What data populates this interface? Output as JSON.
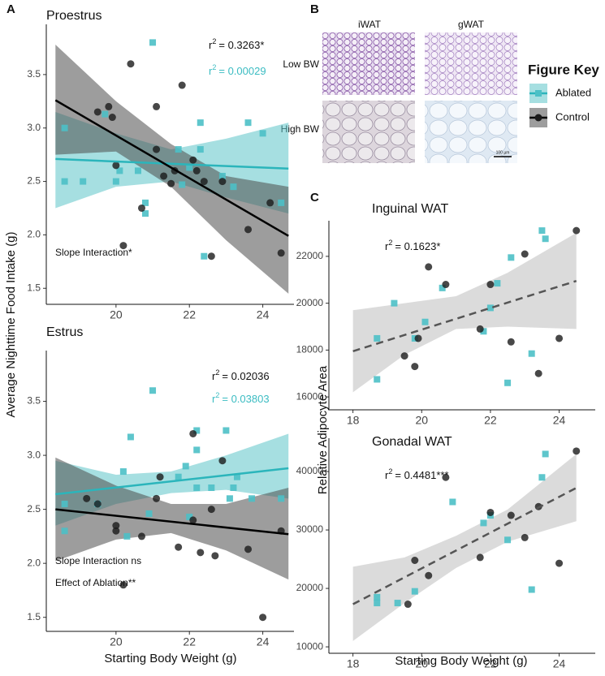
{
  "panel_labels": [
    "A",
    "B",
    "C"
  ],
  "micrographs": {
    "columns": [
      "iWAT",
      "gWAT"
    ],
    "rows": [
      "Low BW",
      "High BW"
    ],
    "scale_bar": "100 µm"
  },
  "figure_key": {
    "title": "Figure Key"
  },
  "chart_data": [
    {
      "type": "scatter",
      "title": "Proestrus",
      "ylabel": "Average Nighttime Food Intake (g)",
      "xlim": [
        18.1,
        24.85
      ],
      "ylim": [
        1.35,
        3.97
      ],
      "xticks": [
        20,
        22,
        24
      ],
      "yticks": [
        1.5,
        {
          "value": 2,
          "label": "2.0"
        },
        2.5,
        {
          "value": 3,
          "label": "3.0"
        },
        3.5
      ],
      "r2": [
        {
          "symbol": "r",
          "exponent": "2",
          "text": "= 0.3263*",
          "color": "#111111"
        },
        {
          "symbol": "r",
          "exponent": "2",
          "text": "= 0.00029",
          "color": "#3bbcc2"
        }
      ],
      "notes": [
        "Slope Interaction*"
      ],
      "series": [
        {
          "name": "Ablated",
          "color": "#4cc0c6",
          "marker": "square",
          "x": [
            18.6,
            18.6,
            19.1,
            19.7,
            20.0,
            20.1,
            20.6,
            20.8,
            20.8,
            21.0,
            21.7,
            22.3,
            22.3,
            21.8,
            22.4,
            22.9,
            23.2,
            23.6,
            24.0,
            24.5,
            22.0
          ],
          "values": [
            3.0,
            2.5,
            2.5,
            3.13,
            2.5,
            2.6,
            2.6,
            2.3,
            2.2,
            3.8,
            2.8,
            3.05,
            2.8,
            2.47,
            1.8,
            2.55,
            2.45,
            3.05,
            2.95,
            2.3,
            2.63
          ],
          "fit": {
            "color": "#2bb5bb",
            "x": [
              18.35,
              24.7
            ],
            "values": [
              2.71,
              2.62
            ]
          },
          "band": {
            "color": "#5cc4c9",
            "x": [
              18.35,
              20,
              21.5,
              23,
              24.7
            ],
            "lower": [
              2.25,
              2.45,
              2.5,
              2.35,
              2.2
            ],
            "upper": [
              3.15,
              2.95,
              2.8,
              2.9,
              3.05
            ]
          }
        },
        {
          "name": "Control",
          "color": "#1a1a1a",
          "marker": "circle",
          "x": [
            19.5,
            19.8,
            19.9,
            20.0,
            20.2,
            20.4,
            20.7,
            21.1,
            21.1,
            21.3,
            21.5,
            21.8,
            21.6,
            22.1,
            22.2,
            22.4,
            22.6,
            22.9,
            23.6,
            24.2,
            24.5
          ],
          "values": [
            3.15,
            3.2,
            3.1,
            2.65,
            1.9,
            3.6,
            2.25,
            3.2,
            2.8,
            2.55,
            2.48,
            3.4,
            2.6,
            2.7,
            2.6,
            2.5,
            1.8,
            2.5,
            2.05,
            2.3,
            1.83
          ],
          "fit": {
            "color": "#000000",
            "x": [
              18.35,
              24.7
            ],
            "values": [
              3.26,
              1.99
            ]
          },
          "band": {
            "color": "#4d4d4d",
            "x": [
              18.35,
              20,
              21.5,
              23,
              24.7
            ],
            "lower": [
              2.75,
              2.78,
              2.45,
              1.95,
              1.45
            ],
            "upper": [
              3.78,
              3.25,
              2.85,
              2.55,
              2.45
            ]
          }
        }
      ]
    },
    {
      "type": "scatter",
      "title": "Estrus",
      "xlabel": "Starting Body Weight (g)",
      "xlim": [
        18.1,
        24.85
      ],
      "ylim": [
        1.37,
        3.97
      ],
      "xticks": [
        20,
        22,
        24
      ],
      "yticks": [
        1.5,
        {
          "value": 2,
          "label": "2.0"
        },
        2.5,
        {
          "value": 3,
          "label": "3.0"
        },
        3.5
      ],
      "r2": [
        {
          "symbol": "r",
          "exponent": "2",
          "text": "= 0.02036",
          "color": "#111111"
        },
        {
          "symbol": "r",
          "exponent": "2",
          "text": "= 0.03803",
          "color": "#3bbcc2"
        }
      ],
      "notes": [
        "Slope Interaction ns",
        "Effect of Ablation**"
      ],
      "series": [
        {
          "name": "Ablated",
          "color": "#4cc0c6",
          "marker": "square",
          "x": [
            18.6,
            18.6,
            19.5,
            20.2,
            20.3,
            20.4,
            20.9,
            21.0,
            21.7,
            21.9,
            22.0,
            22.2,
            22.2,
            22.2,
            22.6,
            23.0,
            23.1,
            23.2,
            23.3,
            23.7,
            24.5
          ],
          "values": [
            2.3,
            2.55,
            2.55,
            2.85,
            2.25,
            3.17,
            2.46,
            3.6,
            2.8,
            2.9,
            2.43,
            3.05,
            3.23,
            2.7,
            2.7,
            3.23,
            2.6,
            2.7,
            2.8,
            2.6,
            2.6
          ],
          "fit": {
            "color": "#2bb5bb",
            "x": [
              18.35,
              24.7
            ],
            "values": [
              2.64,
              2.88
            ]
          },
          "band": {
            "color": "#5cc4c9",
            "x": [
              18.35,
              20,
              21.5,
              23,
              24.7
            ],
            "lower": [
              2.35,
              2.55,
              2.65,
              2.68,
              2.6
            ],
            "upper": [
              2.95,
              2.82,
              2.85,
              3.0,
              3.2
            ]
          }
        },
        {
          "name": "Control",
          "color": "#1a1a1a",
          "marker": "circle",
          "x": [
            19.2,
            19.5,
            20.0,
            20.0,
            20.2,
            20.7,
            21.1,
            21.2,
            21.7,
            22.1,
            22.1,
            22.3,
            22.6,
            22.7,
            22.9,
            23.6,
            24.0,
            24.5
          ],
          "values": [
            2.6,
            2.55,
            2.35,
            2.3,
            1.8,
            2.25,
            2.6,
            2.8,
            2.15,
            3.2,
            2.4,
            2.1,
            2.5,
            2.07,
            2.95,
            2.13,
            1.5,
            2.3
          ],
          "fit": {
            "color": "#000000",
            "x": [
              18.35,
              24.7
            ],
            "values": [
              2.5,
              2.27
            ]
          },
          "band": {
            "color": "#4d4d4d",
            "x": [
              18.35,
              20,
              21.5,
              23,
              24.7
            ],
            "lower": [
              2.02,
              2.22,
              2.28,
              2.12,
              1.85
            ],
            "upper": [
              2.98,
              2.72,
              2.55,
              2.55,
              2.7
            ]
          }
        }
      ]
    },
    {
      "type": "scatter",
      "title": "Inguinal WAT",
      "ylabel": "Relative Adipocyte Area",
      "xlim": [
        17.3,
        25.05
      ],
      "ylim": [
        15450,
        23520
      ],
      "xticks": [
        18,
        20,
        22,
        24
      ],
      "yticks": [
        16000,
        18000,
        20000,
        22000
      ],
      "r2": [
        {
          "symbol": "r",
          "exponent": "2",
          "text": "= 0.1623*",
          "color": "#111111"
        }
      ],
      "fit": {
        "color": "#555555",
        "dash": true,
        "x": [
          18,
          24.5
        ],
        "values": [
          17950,
          20950
        ]
      },
      "band": {
        "color": "#bdbdbd",
        "x": [
          18,
          19.5,
          21,
          22.5,
          24.5
        ],
        "lower": [
          16200,
          17800,
          18900,
          19000,
          18900
        ],
        "upper": [
          19700,
          20000,
          20300,
          21300,
          23000
        ]
      },
      "series": [
        {
          "name": "Ablated",
          "color": "#4cc0c6",
          "marker": "square",
          "x": [
            18.7,
            18.7,
            19.2,
            19.8,
            20.1,
            20.6,
            21.8,
            22.0,
            22.2,
            22.6,
            22.5,
            23.2,
            23.5,
            23.6
          ],
          "values": [
            18500,
            16750,
            20000,
            18500,
            19200,
            20650,
            18800,
            19800,
            20850,
            21950,
            16600,
            17850,
            23100,
            22750
          ]
        },
        {
          "name": "Control",
          "color": "#1a1a1a",
          "marker": "circle",
          "x": [
            19.5,
            19.8,
            19.9,
            20.2,
            20.7,
            21.7,
            22.0,
            22.6,
            23.0,
            23.4,
            24.0,
            24.5
          ],
          "values": [
            17750,
            17300,
            18500,
            21550,
            20800,
            18900,
            20800,
            18350,
            22100,
            17000,
            18500,
            23100
          ]
        }
      ]
    },
    {
      "type": "scatter",
      "title": "Gonadal WAT",
      "xlabel": "Starting Body Weight (g)",
      "xlim": [
        17.3,
        25.05
      ],
      "ylim": [
        8900,
        45700
      ],
      "xticks": [
        18,
        20,
        22,
        24
      ],
      "yticks": [
        10000,
        20000,
        30000,
        40000
      ],
      "r2": [
        {
          "symbol": "r",
          "exponent": "2",
          "text": "= 0.4481***",
          "color": "#111111"
        }
      ],
      "fit": {
        "color": "#555555",
        "dash": true,
        "x": [
          18,
          24.5
        ],
        "values": [
          17300,
          37200
        ]
      },
      "band": {
        "color": "#bdbdbd",
        "x": [
          18,
          19.5,
          21,
          22.5,
          24.5
        ],
        "lower": [
          11000,
          17500,
          23500,
          28000,
          31500
        ],
        "upper": [
          23700,
          25300,
          29000,
          33500,
          43000
        ]
      },
      "series": [
        {
          "name": "Ablated",
          "color": "#4cc0c6",
          "marker": "square",
          "x": [
            18.7,
            18.7,
            19.3,
            19.8,
            20.9,
            21.8,
            22.0,
            22.5,
            23.2,
            23.5,
            23.6
          ],
          "values": [
            18500,
            17500,
            17500,
            19500,
            34800,
            31200,
            32500,
            28300,
            19800,
            39000,
            43000
          ]
        },
        {
          "name": "Control",
          "color": "#1a1a1a",
          "marker": "circle",
          "x": [
            19.6,
            19.8,
            20.2,
            20.7,
            21.7,
            22.0,
            22.6,
            23.0,
            23.4,
            24.0,
            24.5
          ],
          "values": [
            17300,
            24800,
            22200,
            39000,
            25300,
            33000,
            32500,
            28700,
            34000,
            24300,
            43500
          ]
        }
      ]
    }
  ]
}
